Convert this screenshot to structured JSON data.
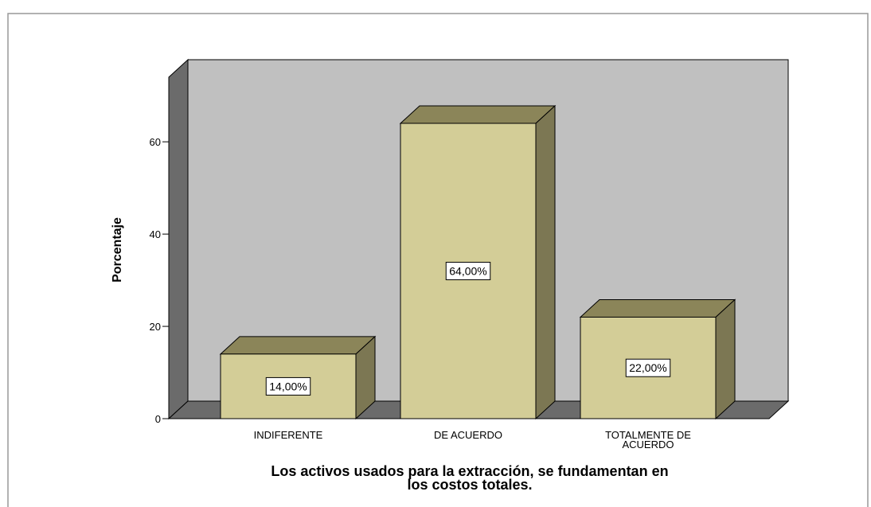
{
  "chart_data": {
    "type": "bar3d",
    "ylabel": "Porcentaje",
    "xlabel": [
      "Los activos usados para la extracción, se fundamentan en",
      "los costos totales."
    ],
    "categories": [
      "INDIFERENTE",
      "DE ACUERDO",
      "TOTALMENTE DE ACUERDO"
    ],
    "values": [
      14,
      64,
      22
    ],
    "value_labels": [
      "14,00%",
      "64,00%",
      "22,00%"
    ],
    "color": "#d3cd97",
    "ylim": [
      0,
      74
    ],
    "yticks": [
      0,
      20,
      40,
      60
    ]
  }
}
